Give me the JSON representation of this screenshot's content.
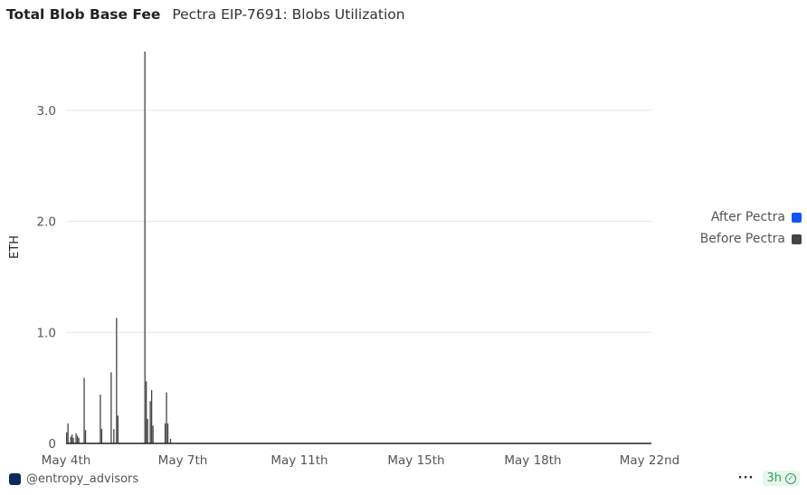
{
  "header": {
    "title": "Total Blob Base Fee",
    "subtitle": "Pectra EIP-7691: Blobs Utilization"
  },
  "legend": [
    {
      "label": "After Pectra",
      "color": "#1554f0"
    },
    {
      "label": "Before Pectra",
      "color": "#444444"
    }
  ],
  "footer": {
    "author": "@entropy_advisors",
    "more_icon": "ellipsis-icon",
    "freshness": "3h",
    "freshness_icon": "check-circle-icon"
  },
  "chart_data": {
    "type": "bar",
    "title": "Total Blob Base Fee",
    "xlabel": "",
    "ylabel": "ETH",
    "ylim": [
      0,
      3.6
    ],
    "yticks": [
      {
        "v": 0,
        "label": "0"
      },
      {
        "v": 1,
        "label": "1.0"
      },
      {
        "v": 2,
        "label": "2.0"
      },
      {
        "v": 3,
        "label": "3.0"
      }
    ],
    "xticks": [
      "May 4th",
      "May 7th",
      "May 11th",
      "May 15th",
      "May 18th",
      "May 22nd"
    ],
    "grid": true,
    "legend_position": "right",
    "series": [
      {
        "name": "Before Pectra",
        "color": "#444444",
        "points": [
          [
            "05-04 00:00",
            0.1
          ],
          [
            "05-04 01:00",
            0.18
          ],
          [
            "05-04 03:00",
            0.06
          ],
          [
            "05-04 04:00",
            0.08
          ],
          [
            "05-04 05:00",
            0.05
          ],
          [
            "05-04 07:00",
            0.09
          ],
          [
            "05-04 08:00",
            0.07
          ],
          [
            "05-04 09:00",
            0.05
          ],
          [
            "05-04 13:00",
            0.59
          ],
          [
            "05-04 14:00",
            0.12
          ],
          [
            "05-05 01:00",
            0.44
          ],
          [
            "05-05 02:00",
            0.13
          ],
          [
            "05-05 09:00",
            0.64
          ],
          [
            "05-05 11:00",
            0.13
          ],
          [
            "05-05 13:00",
            1.13
          ],
          [
            "05-05 14:00",
            0.25
          ],
          [
            "05-06 10:00",
            3.53
          ],
          [
            "05-06 11:00",
            0.56
          ],
          [
            "05-06 12:00",
            0.22
          ],
          [
            "05-06 14:00",
            0.38
          ],
          [
            "05-06 15:00",
            0.48
          ],
          [
            "05-06 16:00",
            0.16
          ],
          [
            "05-07 01:00",
            0.18
          ],
          [
            "05-07 02:00",
            0.46
          ],
          [
            "05-07 03:00",
            0.18
          ],
          [
            "05-07 05:00",
            0.04
          ]
        ]
      },
      {
        "name": "After Pectra",
        "color": "#1554f0",
        "points": []
      }
    ]
  }
}
